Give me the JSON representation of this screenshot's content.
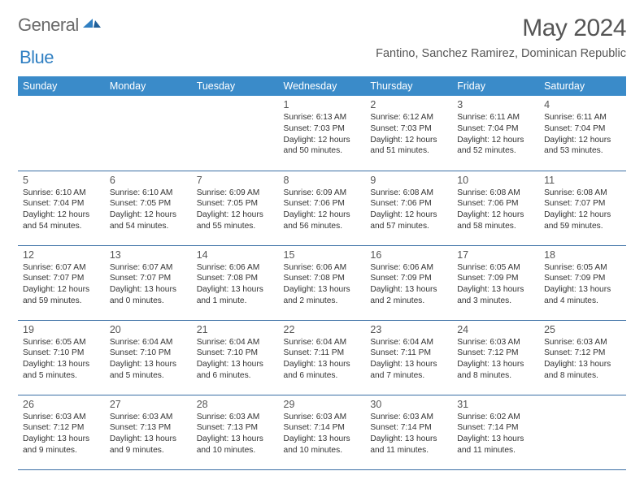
{
  "logo": {
    "part1": "General",
    "part2": "Blue"
  },
  "title": "May 2024",
  "location": "Fantino, Sanchez Ramirez, Dominican Republic",
  "colors": {
    "header_bg": "#3a8bc9",
    "header_fg": "#ffffff",
    "rule": "#3a6fa5",
    "title_fg": "#555555",
    "logo_gray": "#6a6a6a",
    "logo_blue": "#2f7fc2"
  },
  "weekdays": [
    "Sunday",
    "Monday",
    "Tuesday",
    "Wednesday",
    "Thursday",
    "Friday",
    "Saturday"
  ],
  "weeks": [
    [
      null,
      null,
      null,
      {
        "n": "1",
        "sr": "6:13 AM",
        "ss": "7:03 PM",
        "dl": "12 hours and 50 minutes."
      },
      {
        "n": "2",
        "sr": "6:12 AM",
        "ss": "7:03 PM",
        "dl": "12 hours and 51 minutes."
      },
      {
        "n": "3",
        "sr": "6:11 AM",
        "ss": "7:04 PM",
        "dl": "12 hours and 52 minutes."
      },
      {
        "n": "4",
        "sr": "6:11 AM",
        "ss": "7:04 PM",
        "dl": "12 hours and 53 minutes."
      }
    ],
    [
      {
        "n": "5",
        "sr": "6:10 AM",
        "ss": "7:04 PM",
        "dl": "12 hours and 54 minutes."
      },
      {
        "n": "6",
        "sr": "6:10 AM",
        "ss": "7:05 PM",
        "dl": "12 hours and 54 minutes."
      },
      {
        "n": "7",
        "sr": "6:09 AM",
        "ss": "7:05 PM",
        "dl": "12 hours and 55 minutes."
      },
      {
        "n": "8",
        "sr": "6:09 AM",
        "ss": "7:06 PM",
        "dl": "12 hours and 56 minutes."
      },
      {
        "n": "9",
        "sr": "6:08 AM",
        "ss": "7:06 PM",
        "dl": "12 hours and 57 minutes."
      },
      {
        "n": "10",
        "sr": "6:08 AM",
        "ss": "7:06 PM",
        "dl": "12 hours and 58 minutes."
      },
      {
        "n": "11",
        "sr": "6:08 AM",
        "ss": "7:07 PM",
        "dl": "12 hours and 59 minutes."
      }
    ],
    [
      {
        "n": "12",
        "sr": "6:07 AM",
        "ss": "7:07 PM",
        "dl": "12 hours and 59 minutes."
      },
      {
        "n": "13",
        "sr": "6:07 AM",
        "ss": "7:07 PM",
        "dl": "13 hours and 0 minutes."
      },
      {
        "n": "14",
        "sr": "6:06 AM",
        "ss": "7:08 PM",
        "dl": "13 hours and 1 minute."
      },
      {
        "n": "15",
        "sr": "6:06 AM",
        "ss": "7:08 PM",
        "dl": "13 hours and 2 minutes."
      },
      {
        "n": "16",
        "sr": "6:06 AM",
        "ss": "7:09 PM",
        "dl": "13 hours and 2 minutes."
      },
      {
        "n": "17",
        "sr": "6:05 AM",
        "ss": "7:09 PM",
        "dl": "13 hours and 3 minutes."
      },
      {
        "n": "18",
        "sr": "6:05 AM",
        "ss": "7:09 PM",
        "dl": "13 hours and 4 minutes."
      }
    ],
    [
      {
        "n": "19",
        "sr": "6:05 AM",
        "ss": "7:10 PM",
        "dl": "13 hours and 5 minutes."
      },
      {
        "n": "20",
        "sr": "6:04 AM",
        "ss": "7:10 PM",
        "dl": "13 hours and 5 minutes."
      },
      {
        "n": "21",
        "sr": "6:04 AM",
        "ss": "7:10 PM",
        "dl": "13 hours and 6 minutes."
      },
      {
        "n": "22",
        "sr": "6:04 AM",
        "ss": "7:11 PM",
        "dl": "13 hours and 6 minutes."
      },
      {
        "n": "23",
        "sr": "6:04 AM",
        "ss": "7:11 PM",
        "dl": "13 hours and 7 minutes."
      },
      {
        "n": "24",
        "sr": "6:03 AM",
        "ss": "7:12 PM",
        "dl": "13 hours and 8 minutes."
      },
      {
        "n": "25",
        "sr": "6:03 AM",
        "ss": "7:12 PM",
        "dl": "13 hours and 8 minutes."
      }
    ],
    [
      {
        "n": "26",
        "sr": "6:03 AM",
        "ss": "7:12 PM",
        "dl": "13 hours and 9 minutes."
      },
      {
        "n": "27",
        "sr": "6:03 AM",
        "ss": "7:13 PM",
        "dl": "13 hours and 9 minutes."
      },
      {
        "n": "28",
        "sr": "6:03 AM",
        "ss": "7:13 PM",
        "dl": "13 hours and 10 minutes."
      },
      {
        "n": "29",
        "sr": "6:03 AM",
        "ss": "7:14 PM",
        "dl": "13 hours and 10 minutes."
      },
      {
        "n": "30",
        "sr": "6:03 AM",
        "ss": "7:14 PM",
        "dl": "13 hours and 11 minutes."
      },
      {
        "n": "31",
        "sr": "6:02 AM",
        "ss": "7:14 PM",
        "dl": "13 hours and 11 minutes."
      },
      null
    ]
  ],
  "labels": {
    "sunrise": "Sunrise:",
    "sunset": "Sunset:",
    "daylight": "Daylight:"
  }
}
